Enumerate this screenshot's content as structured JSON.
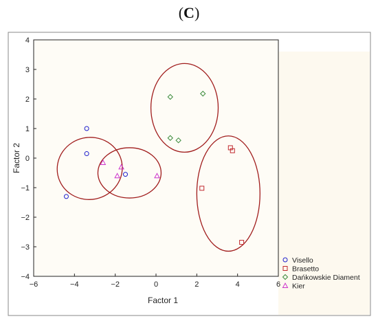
{
  "panel_label": {
    "open": "(",
    "letter": "C",
    "close": ")"
  },
  "chart_data": {
    "type": "scatter",
    "title": "",
    "xlabel": "Factor 1",
    "ylabel": "Factor 2",
    "xlim": [
      -6,
      6
    ],
    "ylim": [
      -4,
      4
    ],
    "xticks": [
      -6,
      -4,
      -2,
      0,
      2,
      4,
      6
    ],
    "yticks": [
      -4,
      -3,
      -2,
      -1,
      0,
      1,
      2,
      3,
      4
    ],
    "grid": false,
    "legend_position": "bottom-right",
    "series": [
      {
        "name": "Visello",
        "marker": "circle",
        "color": "#1f1fcc",
        "points": [
          [
            -3.4,
            1.0
          ],
          [
            -3.4,
            0.15
          ],
          [
            -4.4,
            -1.3
          ],
          [
            -1.5,
            -0.55
          ]
        ]
      },
      {
        "name": "Brasetto",
        "marker": "square",
        "color": "#c0282d",
        "points": [
          [
            3.65,
            0.35
          ],
          [
            3.75,
            0.25
          ],
          [
            2.25,
            -1.02
          ],
          [
            4.2,
            -2.85
          ]
        ]
      },
      {
        "name": "Dańkowskie Diament",
        "marker": "diamond",
        "color": "#3a8a3a",
        "points": [
          [
            0.7,
            2.07
          ],
          [
            2.3,
            2.18
          ],
          [
            0.7,
            0.68
          ],
          [
            1.1,
            0.6
          ]
        ]
      },
      {
        "name": "Kier",
        "marker": "triangle",
        "color": "#cc33cc",
        "points": [
          [
            -2.6,
            -0.15
          ],
          [
            -1.7,
            -0.3
          ],
          [
            -1.9,
            -0.6
          ],
          [
            0.05,
            -0.6
          ]
        ]
      }
    ],
    "ellipses": [
      {
        "cx": -3.25,
        "cy": -0.35,
        "rx": 1.6,
        "ry": 1.05,
        "rotation_deg": -12,
        "color": "#a01c1c"
      },
      {
        "cx": -1.3,
        "cy": -0.5,
        "rx": 1.55,
        "ry": 0.85,
        "rotation_deg": 0,
        "color": "#a01c1c"
      },
      {
        "cx": 1.4,
        "cy": 1.7,
        "rx": 1.65,
        "ry": 1.5,
        "rotation_deg": 0,
        "color": "#a01c1c"
      },
      {
        "cx": 3.55,
        "cy": -1.2,
        "rx": 1.55,
        "ry": 1.95,
        "rotation_deg": 0,
        "color": "#a01c1c"
      }
    ]
  }
}
